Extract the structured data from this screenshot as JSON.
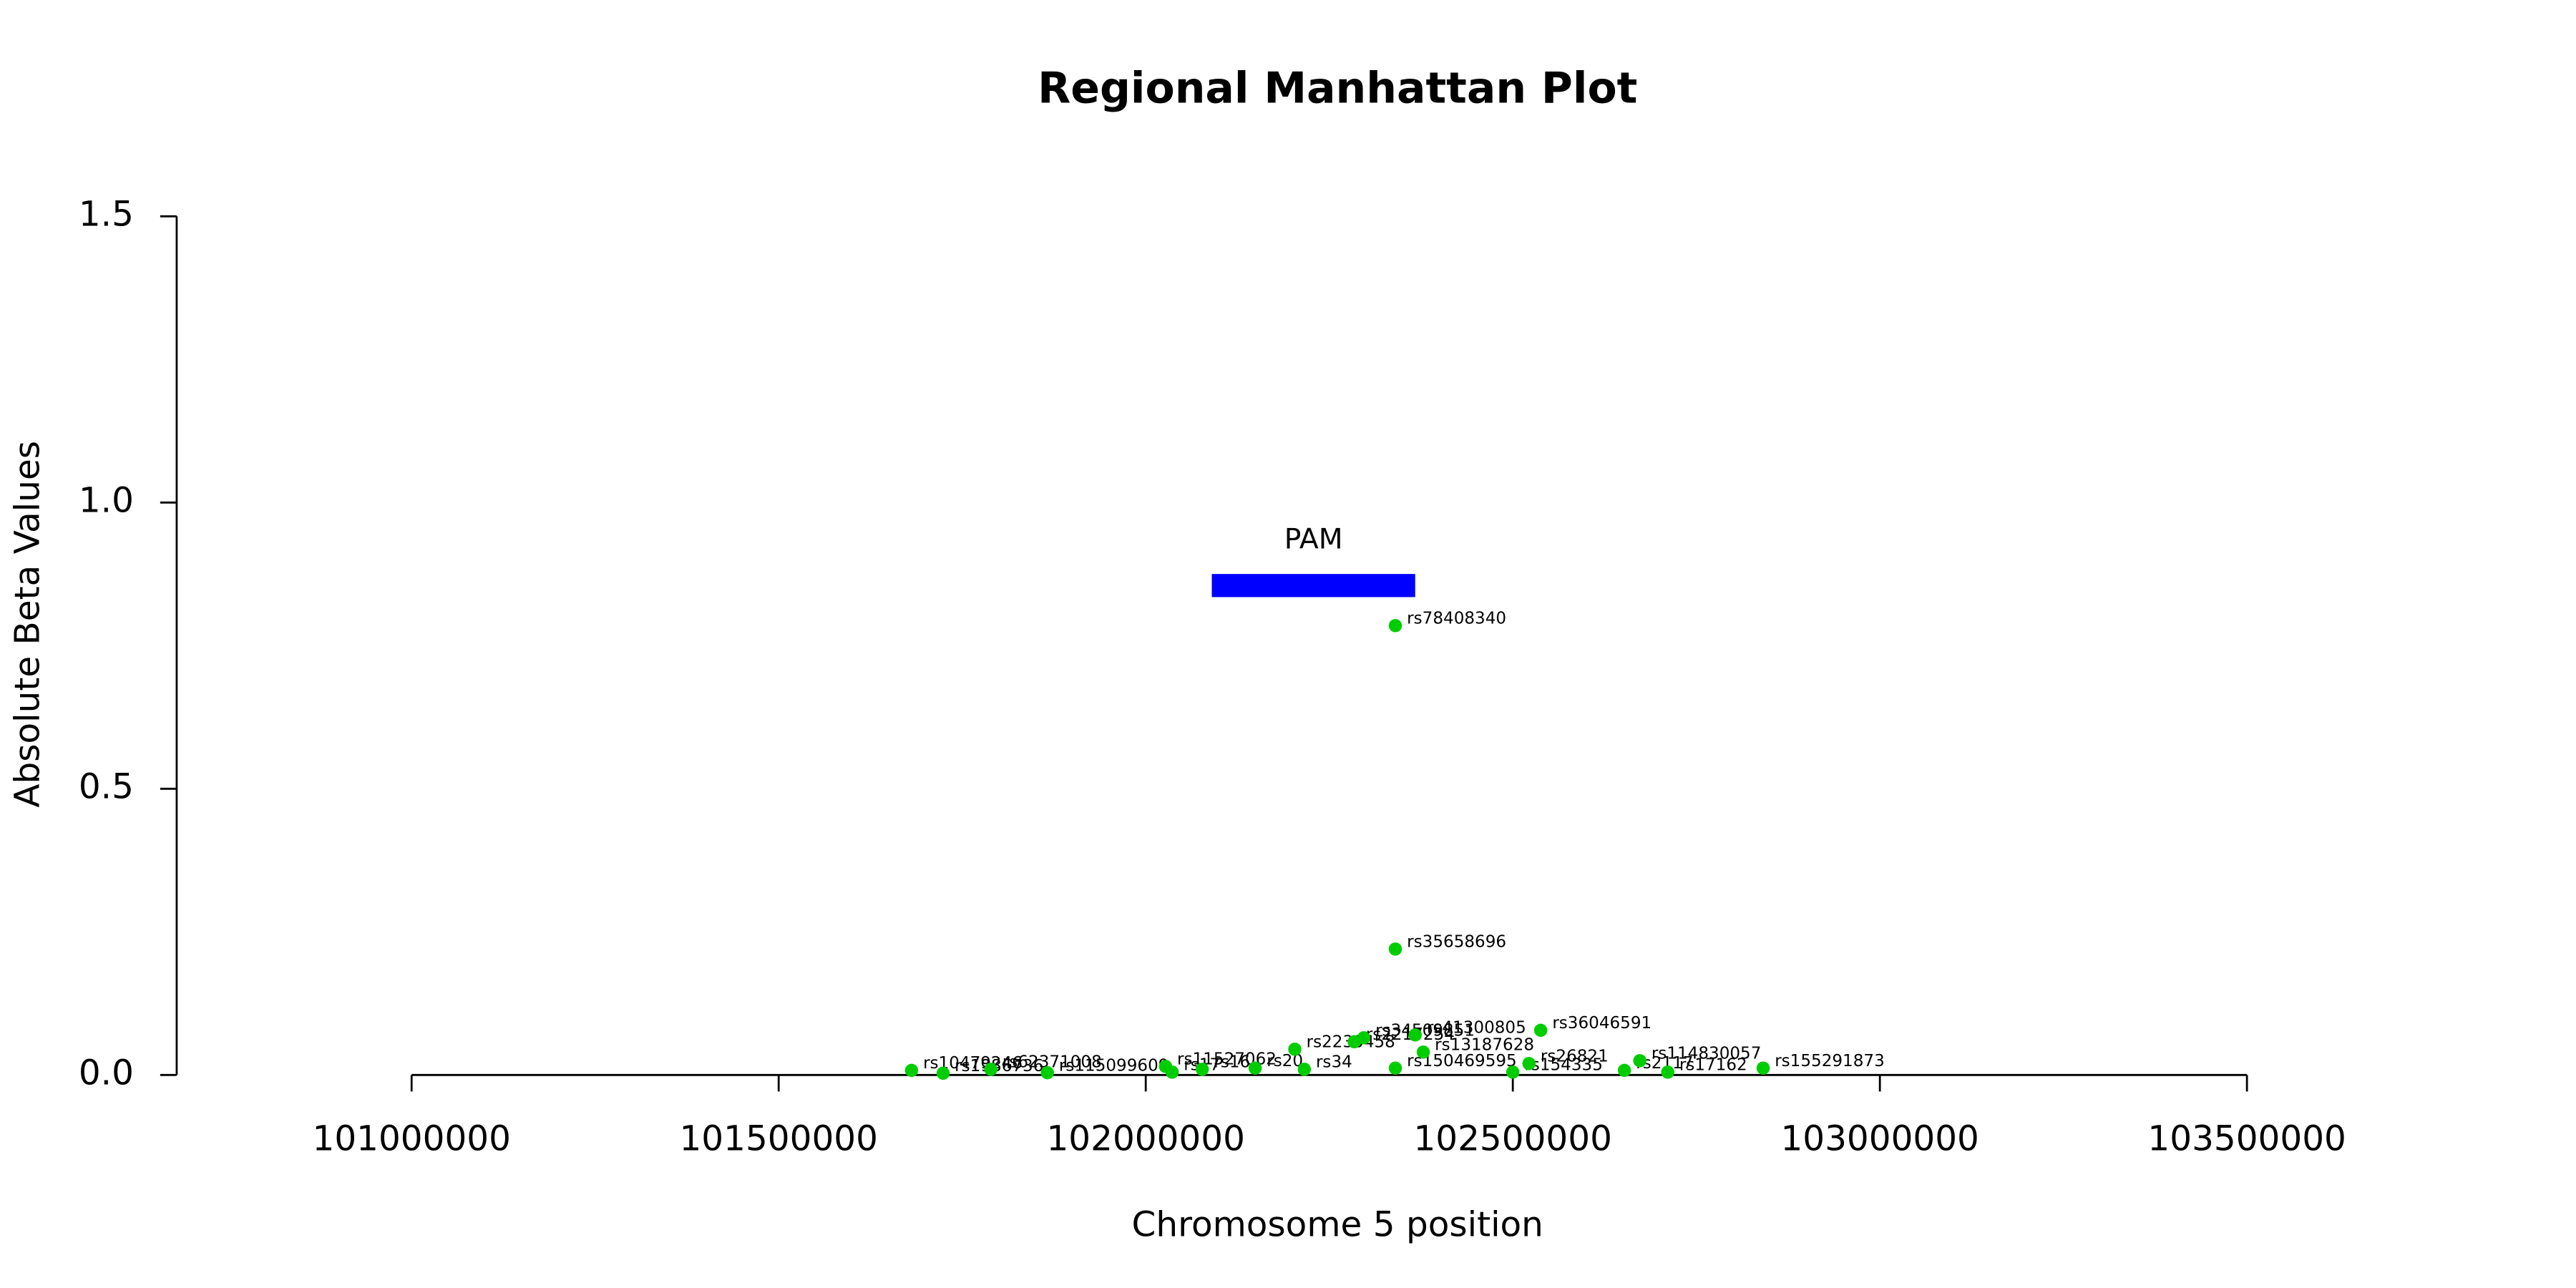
{
  "chart_data": {
    "type": "scatter",
    "title": "Regional Manhattan Plot",
    "x_label": "Chromosome 5 position",
    "y_label": "Absolute Beta Values",
    "xlim": [
      100680000,
      103820000
    ],
    "ylim": [
      0,
      1.5
    ],
    "xticks": [
      101000000,
      101500000,
      102000000,
      102500000,
      103000000,
      103500000
    ],
    "yticks": [
      {
        "value": 0,
        "label": "0.0"
      },
      0.5,
      {
        "value": 1,
        "label": "1.0"
      },
      1.5
    ],
    "gene": {
      "name": "PAM",
      "start": 102090000,
      "end": 102367000,
      "y": 0.855,
      "color": "#0000ff"
    },
    "series": [
      {
        "color": "#00cd00",
        "x": [
          101681000,
          101724000,
          101789000,
          101866000,
          102027000,
          102036000,
          102077000,
          102149000,
          102203000,
          102216000,
          102284000,
          102297000,
          102340000,
          102340000,
          102340000,
          102367000,
          102378000,
          102500000,
          102522000,
          102538000,
          102652000,
          102673000,
          102711000,
          102841000
        ],
        "values": [
          0.008,
          0.003,
          0.01,
          0.004,
          0.015,
          0.005,
          0.01,
          0.012,
          0.045,
          0.01,
          0.058,
          0.065,
          0.785,
          0.22,
          0.012,
          0.07,
          0.04,
          0.005,
          0.02,
          0.078,
          0.008,
          0.025,
          0.005,
          0.012
        ],
        "labels": [
          "rs10479246",
          "rs1986736",
          "rs62371008",
          "rs115099609",
          "rs11527062",
          "rs17",
          "rs16",
          "rs20",
          "rs2230458",
          "rs34",
          "rs2217254",
          "rs34509851",
          "rs78408340",
          "rs35658696",
          "rs150469595",
          "rs41300805",
          "rs13187628",
          "rs154335",
          "rs26821",
          "rs36046591",
          "rs2117",
          "rs114830057",
          "rs17162",
          "rs155291873"
        ]
      }
    ]
  }
}
